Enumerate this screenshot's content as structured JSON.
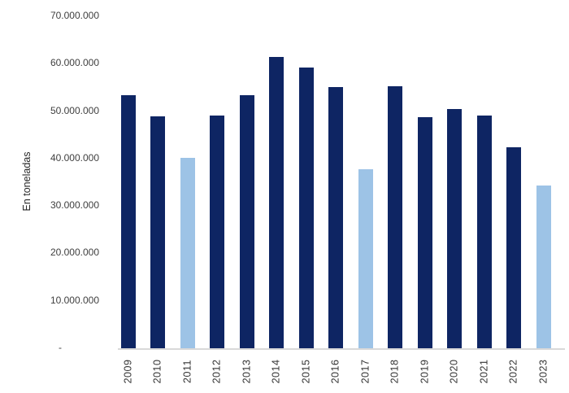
{
  "colors": {
    "bar_dark": "#0e2563",
    "bar_light": "#9dc3e6",
    "axis_line": "#d9d9d9",
    "tick_text": "#404040"
  },
  "chart_data": {
    "type": "bar",
    "title": "",
    "xlabel": "",
    "ylabel": "En toneladas",
    "categories": [
      "2009",
      "2010",
      "2011",
      "2012",
      "2013",
      "2014",
      "2015",
      "2016",
      "2017",
      "2018",
      "2019",
      "2020",
      "2021",
      "2022",
      "2023"
    ],
    "values": [
      53300000,
      48900000,
      40200000,
      49000000,
      53400000,
      61400000,
      59200000,
      55000000,
      37700000,
      55200000,
      48700000,
      50400000,
      49000000,
      42300000,
      34400000
    ],
    "highlight_categories": [
      "2011",
      "2017",
      "2023"
    ],
    "series_color_default": "#0e2563",
    "series_color_highlight": "#9dc3e6",
    "ylim": [
      0,
      70000000
    ],
    "grid": false,
    "legend": "none",
    "yticks": [
      {
        "label": "70.000.000",
        "value": 70000000
      },
      {
        "label": "60.000.000",
        "value": 60000000
      },
      {
        "label": "50.000.000",
        "value": 50000000
      },
      {
        "label": "40.000.000",
        "value": 40000000
      },
      {
        "label": "30.000.000",
        "value": 30000000
      },
      {
        "label": "20.000.000",
        "value": 20000000
      },
      {
        "label": "10.000.000",
        "value": 10000000
      },
      {
        "label": "-",
        "value": 0
      }
    ]
  }
}
